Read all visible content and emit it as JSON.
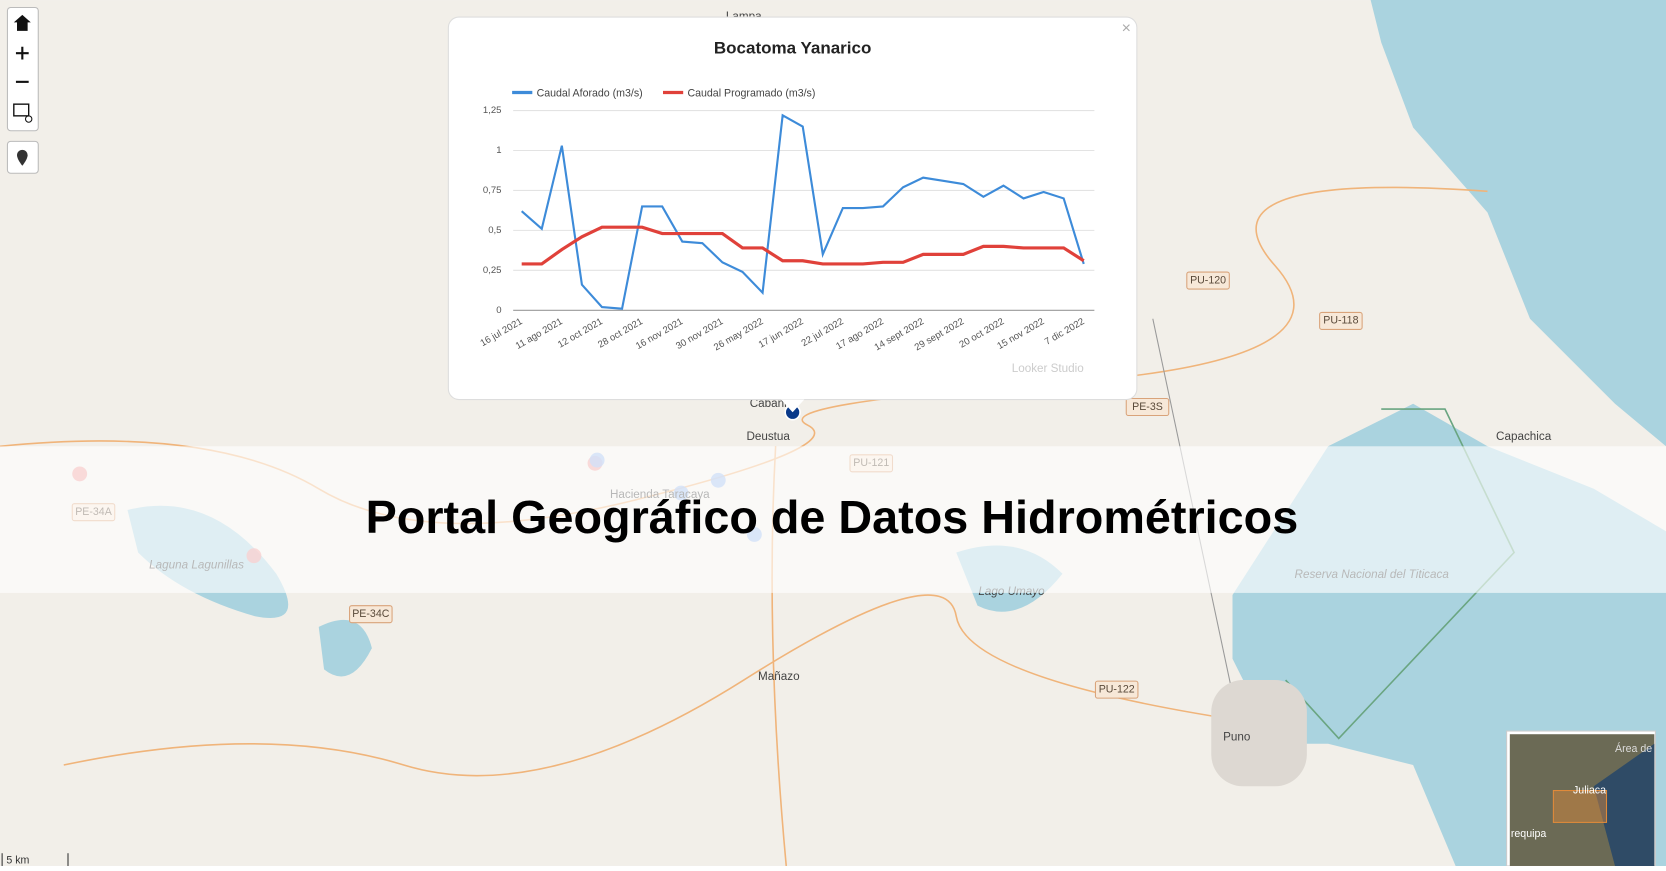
{
  "banner": {
    "title": "Portal Geográfico de Datos Hidrométricos"
  },
  "map": {
    "labels": [
      "Lampa",
      "Cabani",
      "Deustua",
      "PU-121",
      "Hacienda Taracaya",
      "Laguna Lagunillas",
      "PE-34A",
      "PE-34C",
      "Lago Umayo",
      "Mañazo",
      "PU-122",
      "Puno",
      "PU-120",
      "PU-118",
      "PE-3S",
      "Capachica",
      "Reserva Nacional del Titicaca"
    ],
    "scale": "5 km",
    "minimap": [
      "Juliaca",
      "requipa",
      "Área de"
    ]
  },
  "popup": {
    "close": "×",
    "footer": "Looker Studio"
  },
  "chart_data": {
    "type": "line",
    "title": "Bocatoma Yanarico",
    "categories": [
      "16 jul 2021",
      null,
      "11 ago 2021",
      null,
      "12 oct 2021",
      null,
      "28 oct 2021",
      null,
      "16 nov 2021",
      null,
      "30 nov 2021",
      null,
      "26 may 2022",
      null,
      "17 jun 2022",
      null,
      "22 jul 2022",
      null,
      "17 ago 2022",
      null,
      "14 sept 2022",
      null,
      "29 sept 2022",
      null,
      "20 oct 2022",
      null,
      "15 nov 2022",
      null,
      "7 dic 2022"
    ],
    "series": [
      {
        "name": "Caudal Aforado (m3/s)",
        "color": "#3d8bd9",
        "values": [
          0.62,
          0.51,
          1.03,
          0.16,
          0.02,
          0.01,
          0.65,
          0.65,
          0.43,
          0.42,
          0.3,
          0.24,
          0.11,
          1.22,
          1.15,
          0.35,
          0.64,
          0.64,
          0.65,
          0.77,
          0.83,
          0.81,
          0.79,
          0.71,
          0.78,
          0.7,
          0.74,
          0.7,
          0.29
        ]
      },
      {
        "name": "Caudal Programado (m3/s)",
        "color": "#e0413a",
        "values": [
          0.29,
          0.29,
          0.38,
          0.46,
          0.52,
          0.52,
          0.52,
          0.48,
          0.48,
          0.48,
          0.48,
          0.39,
          0.39,
          0.31,
          0.31,
          0.29,
          0.29,
          0.29,
          0.3,
          0.3,
          0.35,
          0.35,
          0.35,
          0.4,
          0.4,
          0.39,
          0.39,
          0.39,
          0.31
        ]
      }
    ],
    "ylim": [
      0,
      1.25
    ],
    "yticks": [
      0,
      {
        "value": 0.25,
        "label": "0,25"
      },
      {
        "value": 0.5,
        "label": "0,5"
      },
      {
        "value": 0.75,
        "label": "0,75"
      },
      1,
      {
        "value": 1.25,
        "label": "1,25"
      }
    ],
    "grid": true
  }
}
